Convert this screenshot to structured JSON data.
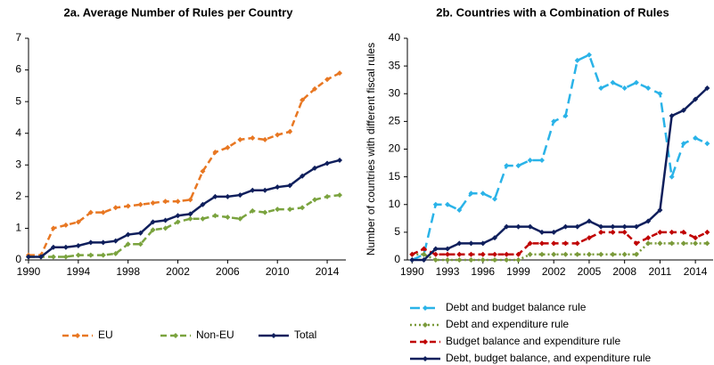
{
  "chart_data": [
    {
      "type": "line",
      "title": "2a. Average Number of Rules per Country",
      "x": [
        1990,
        1991,
        1992,
        1993,
        1994,
        1995,
        1996,
        1997,
        1998,
        1999,
        2000,
        2001,
        2002,
        2003,
        2004,
        2005,
        2006,
        2007,
        2008,
        2009,
        2010,
        2011,
        2012,
        2013,
        2014,
        2015
      ],
      "xlim": [
        1990,
        2015.5
      ],
      "xticks": [
        1990,
        1994,
        1998,
        2002,
        2006,
        2010,
        2014
      ],
      "ylim": [
        0,
        7
      ],
      "yticks": [
        0,
        1,
        2,
        3,
        4,
        5,
        6,
        7
      ],
      "grid": false,
      "legend": "bottom-row",
      "series": [
        {
          "name": "EU",
          "color": "#e87722",
          "style": "dashed",
          "values": [
            0.15,
            0.15,
            1.0,
            1.1,
            1.2,
            1.5,
            1.5,
            1.65,
            1.7,
            1.75,
            1.8,
            1.85,
            1.85,
            1.9,
            2.8,
            3.4,
            3.55,
            3.8,
            3.85,
            3.8,
            3.95,
            4.05,
            5.05,
            5.4,
            5.7,
            5.9
          ]
        },
        {
          "name": "Non-EU",
          "color": "#7aa33e",
          "style": "dashed",
          "values": [
            0.1,
            0.1,
            0.1,
            0.1,
            0.15,
            0.15,
            0.15,
            0.2,
            0.5,
            0.5,
            0.95,
            1.0,
            1.2,
            1.3,
            1.3,
            1.4,
            1.35,
            1.3,
            1.55,
            1.5,
            1.6,
            1.6,
            1.65,
            1.9,
            2.0,
            2.05
          ]
        },
        {
          "name": "Total",
          "color": "#0f1f5c",
          "style": "solid",
          "values": [
            0.1,
            0.1,
            0.4,
            0.4,
            0.45,
            0.55,
            0.55,
            0.6,
            0.8,
            0.85,
            1.2,
            1.25,
            1.4,
            1.45,
            1.75,
            2.0,
            2.0,
            2.05,
            2.2,
            2.2,
            2.3,
            2.35,
            2.65,
            2.9,
            3.05,
            3.15
          ]
        }
      ]
    },
    {
      "type": "line",
      "title": "2b. Countries with a Combination of Rules",
      "y_label": "Number of countries with different fiscal rules",
      "x": [
        1990,
        1991,
        1992,
        1993,
        1994,
        1995,
        1996,
        1997,
        1998,
        1999,
        2000,
        2001,
        2002,
        2003,
        2004,
        2005,
        2006,
        2007,
        2008,
        2009,
        2010,
        2011,
        2012,
        2013,
        2014,
        2015
      ],
      "xlim": [
        1989.6,
        2015.5
      ],
      "xticks": [
        1990,
        1993,
        1996,
        1999,
        2002,
        2005,
        2008,
        2011,
        2014
      ],
      "ylim": [
        0,
        40
      ],
      "yticks": [
        0,
        5,
        10,
        15,
        20,
        25,
        30,
        35,
        40
      ],
      "grid": false,
      "legend": "bottom-column",
      "series": [
        {
          "name": "Debt and budget balance rule",
          "color": "#2ab3e8",
          "style": "longdash",
          "values": [
            0,
            1,
            10,
            10,
            9,
            12,
            12,
            11,
            17,
            17,
            18,
            18,
            25,
            26,
            36,
            37,
            31,
            32,
            31,
            32,
            31,
            30,
            15,
            21,
            22,
            21
          ]
        },
        {
          "name": "Debt and expenditure rule",
          "color": "#7a9a3a",
          "style": "dotted",
          "values": [
            1,
            1,
            0,
            0,
            0,
            0,
            0,
            0,
            0,
            0,
            1,
            1,
            1,
            1,
            1,
            1,
            1,
            1,
            1,
            1,
            3,
            3,
            3,
            3,
            3,
            3
          ]
        },
        {
          "name": "Budget balance and expenditure rule",
          "color": "#c00000",
          "style": "dashed",
          "values": [
            1,
            2,
            1,
            1,
            1,
            1,
            1,
            1,
            1,
            1,
            3,
            3,
            3,
            3,
            3,
            4,
            5,
            5,
            5,
            3,
            4,
            5,
            5,
            5,
            4,
            5
          ]
        },
        {
          "name": "Debt, budget balance, and expenditure rule",
          "color": "#0f1f5c",
          "style": "solid",
          "values": [
            0,
            0,
            2,
            2,
            3,
            3,
            3,
            4,
            6,
            6,
            6,
            5,
            5,
            6,
            6,
            7,
            6,
            6,
            6,
            6,
            7,
            9,
            26,
            27,
            29,
            31
          ]
        }
      ]
    }
  ]
}
